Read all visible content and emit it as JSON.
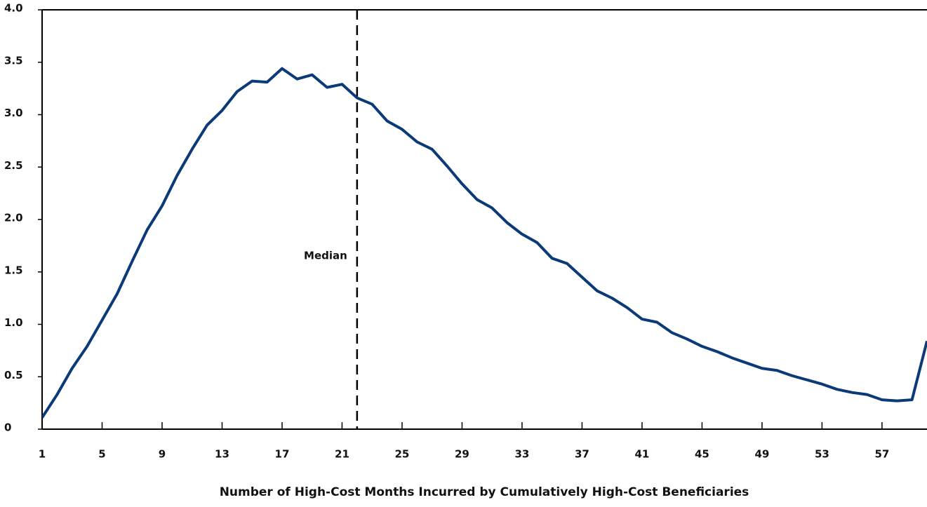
{
  "chart_data": {
    "type": "line",
    "x_label": "Number of High-Cost Months Incurred by Cumulatively High-Cost Beneficiaries",
    "x": [
      1,
      2,
      3,
      4,
      5,
      6,
      7,
      8,
      9,
      10,
      11,
      12,
      13,
      14,
      15,
      16,
      17,
      18,
      19,
      20,
      21,
      22,
      23,
      24,
      25,
      26,
      27,
      28,
      29,
      30,
      31,
      32,
      33,
      34,
      35,
      36,
      37,
      38,
      39,
      40,
      41,
      42,
      43,
      44,
      45,
      46,
      47,
      48,
      49,
      50,
      51,
      52,
      53,
      54,
      55,
      56,
      57,
      58,
      59,
      60
    ],
    "series": [
      {
        "color": "#0b3a78",
        "values": [
          0.11,
          0.33,
          0.58,
          0.79,
          1.04,
          1.29,
          1.6,
          1.9,
          2.13,
          2.42,
          2.67,
          2.9,
          3.04,
          3.22,
          3.32,
          3.31,
          3.44,
          3.34,
          3.38,
          3.26,
          3.29,
          3.16,
          3.1,
          2.94,
          2.86,
          2.74,
          2.67,
          2.51,
          2.34,
          2.19,
          2.11,
          1.97,
          1.86,
          1.78,
          1.63,
          1.58,
          1.45,
          1.32,
          1.25,
          1.16,
          1.05,
          1.02,
          0.92,
          0.86,
          0.79,
          0.74,
          0.68,
          0.63,
          0.58,
          0.56,
          0.51,
          0.47,
          0.43,
          0.38,
          0.35,
          0.33,
          0.28,
          0.27,
          0.28,
          0.84
        ]
      }
    ],
    "xlim": [
      1,
      60
    ],
    "xticks": [
      1,
      5,
      9,
      13,
      17,
      21,
      25,
      29,
      33,
      37,
      41,
      45,
      49,
      53,
      57
    ],
    "ylim": [
      0,
      4
    ],
    "yticks": [
      0,
      0.5,
      {
        "value": 1,
        "label": "1.0"
      },
      1.5,
      {
        "value": 2,
        "label": "2.0"
      },
      2.5,
      {
        "value": 3,
        "label": "3.0"
      },
      3.5,
      {
        "value": 4,
        "label": "4.0"
      }
    ],
    "annotations": [
      {
        "label": "Median",
        "x": 22
      }
    ]
  }
}
